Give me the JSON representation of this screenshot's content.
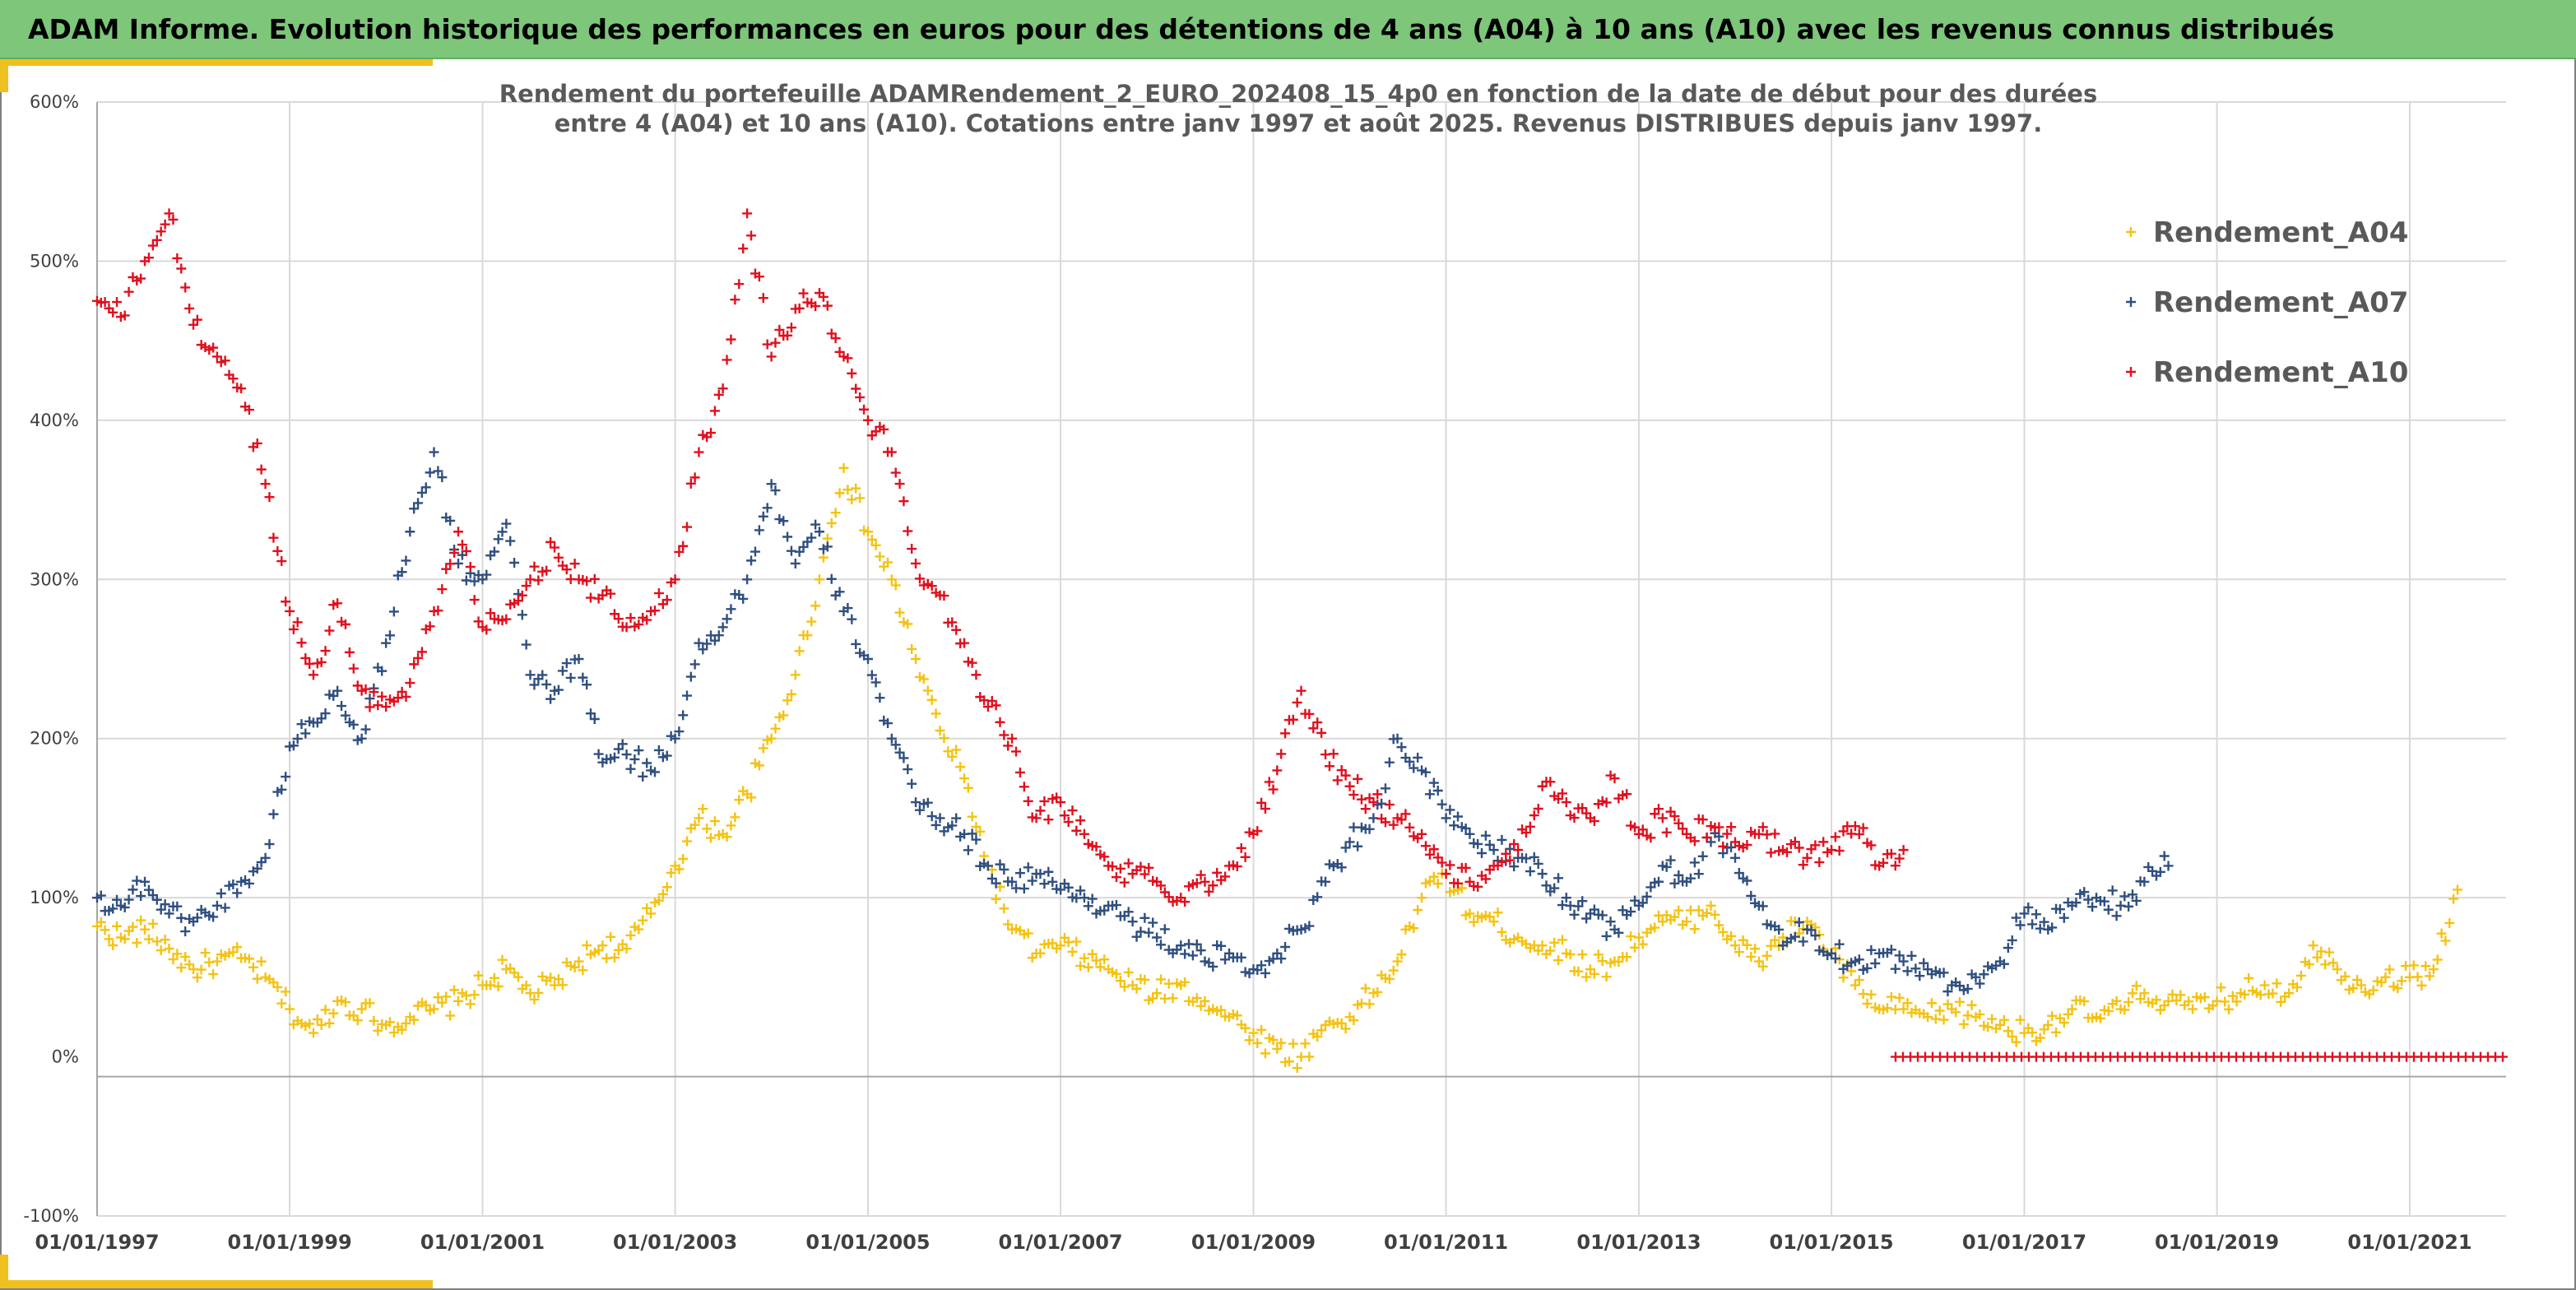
{
  "header": {
    "title": "ADAM Informe. Evolution historique des performances en euros pour des détentions de 4 ans (A04) à 10 ans (A10) avec les revenus connus distribués"
  },
  "colors": {
    "banner": "#7dc67a",
    "accent": "#f0c020",
    "A04": "#f5c211",
    "A07": "#2f4f7f",
    "A10": "#e0101e"
  },
  "chart_data": {
    "type": "scatter",
    "title_lines": [
      "Rendement du portefeuille ADAMRendement_2_EURO_202408_15_4p0  en fonction de la date de début pour des durées",
      "entre 4 (A04) et 10 ans (A10). Cotations entre janv 1997 et août 2025. Revenus DISTRIBUES depuis janv 1997."
    ],
    "xlabel": "",
    "ylabel": "",
    "xlim": [
      "1997-01-01",
      "2022-01-01"
    ],
    "ylim": [
      -100,
      600
    ],
    "y_ticks": [
      -100,
      0,
      100,
      200,
      300,
      400,
      500,
      600
    ],
    "y_tick_labels": [
      "-100%",
      "0%",
      "100%",
      "200%",
      "300%",
      "400%",
      "500%",
      "600%"
    ],
    "x_ticks": [
      "1997-01-01",
      "1999-01-01",
      "2001-01-01",
      "2003-01-01",
      "2005-01-01",
      "2007-01-01",
      "2009-01-01",
      "2011-01-01",
      "2013-01-01",
      "2015-01-01",
      "2017-01-01",
      "2019-01-01",
      "2021-01-01"
    ],
    "x_tick_labels": [
      "01/01/1997",
      "01/01/1999",
      "01/01/2001",
      "01/01/2003",
      "01/01/2005",
      "01/01/2007",
      "01/01/2009",
      "01/01/2011",
      "01/01/2013",
      "01/01/2015",
      "01/01/2017",
      "01/01/2019",
      "01/01/2021"
    ],
    "grid": true,
    "marker": "+",
    "legend_position": "top-right",
    "series": [
      {
        "name": "Rendement_A04",
        "color": "#f5c211",
        "x": [
          "1997-01-01",
          "1997-04-01",
          "1997-07-01",
          "1997-10-01",
          "1998-01-01",
          "1998-04-01",
          "1998-07-01",
          "1998-10-01",
          "1999-01-01",
          "1999-04-01",
          "1999-07-01",
          "1999-10-01",
          "2000-01-01",
          "2000-04-01",
          "2000-07-01",
          "2000-10-01",
          "2001-01-01",
          "2001-04-01",
          "2001-07-01",
          "2001-10-01",
          "2002-01-01",
          "2002-04-01",
          "2002-07-01",
          "2002-10-01",
          "2003-01-01",
          "2003-04-01",
          "2003-07-01",
          "2003-10-01",
          "2004-01-01",
          "2004-04-01",
          "2004-07-01",
          "2004-10-01",
          "2005-01-01",
          "2005-04-01",
          "2005-07-01",
          "2005-10-01",
          "2006-01-01",
          "2006-04-01",
          "2006-07-01",
          "2006-10-01",
          "2007-01-01",
          "2007-04-01",
          "2007-07-01",
          "2007-10-01",
          "2008-01-01",
          "2008-04-01",
          "2008-07-01",
          "2008-10-01",
          "2009-01-01",
          "2009-04-01",
          "2009-07-01",
          "2009-10-01",
          "2010-01-01",
          "2010-04-01",
          "2010-07-01",
          "2010-10-01",
          "2011-01-01",
          "2011-04-01",
          "2011-07-01",
          "2011-10-01",
          "2012-01-01",
          "2012-04-01",
          "2012-07-01",
          "2012-10-01",
          "2013-01-01",
          "2013-04-01",
          "2013-07-01",
          "2013-10-01",
          "2014-01-01",
          "2014-04-01",
          "2014-07-01",
          "2014-10-01",
          "2015-01-01",
          "2015-04-01",
          "2015-07-01",
          "2015-10-01",
          "2016-01-01",
          "2016-04-01",
          "2016-07-01",
          "2016-10-01",
          "2017-01-01",
          "2017-04-01",
          "2017-07-01",
          "2017-10-01",
          "2018-01-01",
          "2018-04-01",
          "2018-07-01",
          "2018-10-01",
          "2019-01-01",
          "2019-04-01",
          "2019-07-01",
          "2019-10-01",
          "2020-01-01",
          "2020-04-01",
          "2020-07-01",
          "2020-10-01",
          "2021-01-01",
          "2021-04-01",
          "2021-07-01"
        ],
        "y": [
          82,
          75,
          80,
          68,
          55,
          60,
          62,
          50,
          30,
          15,
          35,
          30,
          20,
          25,
          30,
          35,
          45,
          55,
          40,
          45,
          60,
          70,
          68,
          90,
          120,
          150,
          140,
          165,
          200,
          240,
          300,
          370,
          330,
          300,
          250,
          205,
          175,
          120,
          80,
          65,
          70,
          62,
          55,
          45,
          40,
          45,
          35,
          25,
          15,
          5,
          0,
          20,
          25,
          40,
          60,
          100,
          115,
          90,
          85,
          75,
          70,
          65,
          55,
          60,
          75,
          85,
          85,
          95,
          70,
          60,
          75,
          85,
          65,
          45,
          30,
          30,
          25,
          30,
          25,
          20,
          15,
          20,
          30,
          25,
          30,
          40,
          35,
          30,
          35,
          40,
          45,
          40,
          70,
          55,
          45,
          50,
          50,
          55,
          105
        ]
      },
      {
        "name": "Rendement_A07",
        "color": "#2f4f7f",
        "x": [
          "1997-01-01",
          "1997-04-01",
          "1997-07-01",
          "1997-10-01",
          "1998-01-01",
          "1998-04-01",
          "1998-07-01",
          "1998-10-01",
          "1999-01-01",
          "1999-04-01",
          "1999-07-01",
          "1999-10-01",
          "2000-01-01",
          "2000-04-01",
          "2000-07-01",
          "2000-10-01",
          "2001-01-01",
          "2001-04-01",
          "2001-07-01",
          "2001-10-01",
          "2002-01-01",
          "2002-04-01",
          "2002-07-01",
          "2002-10-01",
          "2003-01-01",
          "2003-04-01",
          "2003-07-01",
          "2003-10-01",
          "2004-01-01",
          "2004-04-01",
          "2004-07-01",
          "2004-10-01",
          "2005-01-01",
          "2005-04-01",
          "2005-07-01",
          "2005-10-01",
          "2006-01-01",
          "2006-04-01",
          "2006-07-01",
          "2006-10-01",
          "2007-01-01",
          "2007-04-01",
          "2007-07-01",
          "2007-10-01",
          "2008-01-01",
          "2008-04-01",
          "2008-07-01",
          "2008-10-01",
          "2009-01-01",
          "2009-04-01",
          "2009-07-01",
          "2009-10-01",
          "2010-01-01",
          "2010-04-01",
          "2010-07-01",
          "2010-10-01",
          "2011-01-01",
          "2011-04-01",
          "2011-07-01",
          "2011-10-01",
          "2012-01-01",
          "2012-04-01",
          "2012-07-01",
          "2012-10-01",
          "2013-01-01",
          "2013-04-01",
          "2013-07-01",
          "2013-10-01",
          "2014-01-01",
          "2014-04-01",
          "2014-07-01",
          "2014-10-01",
          "2015-01-01",
          "2015-04-01",
          "2015-07-01",
          "2015-10-01",
          "2016-01-01",
          "2016-04-01",
          "2016-07-01",
          "2016-10-01",
          "2017-01-01",
          "2017-04-01",
          "2017-07-01",
          "2017-10-01",
          "2018-01-01",
          "2018-04-01",
          "2018-07-01"
        ],
        "y": [
          100,
          95,
          110,
          90,
          85,
          95,
          110,
          125,
          195,
          210,
          230,
          200,
          260,
          330,
          380,
          310,
          300,
          335,
          240,
          230,
          250,
          185,
          190,
          180,
          200,
          260,
          270,
          300,
          360,
          310,
          330,
          280,
          250,
          200,
          160,
          150,
          140,
          120,
          110,
          115,
          105,
          100,
          95,
          85,
          75,
          70,
          60,
          65,
          55,
          65,
          80,
          110,
          135,
          150,
          200,
          180,
          150,
          140,
          130,
          125,
          115,
          100,
          90,
          80,
          95,
          120,
          110,
          135,
          125,
          95,
          70,
          80,
          65,
          60,
          65,
          60,
          55,
          45,
          50,
          60,
          90,
          80,
          95,
          100,
          95,
          110,
          120
        ]
      },
      {
        "name": "Rendement_A10",
        "color": "#e0101e",
        "x": [
          "1997-01-01",
          "1997-04-01",
          "1997-07-01",
          "1997-10-01",
          "1998-01-01",
          "1998-04-01",
          "1998-07-01",
          "1998-10-01",
          "1999-01-01",
          "1999-04-01",
          "1999-07-01",
          "1999-10-01",
          "2000-01-01",
          "2000-04-01",
          "2000-07-01",
          "2000-10-01",
          "2001-01-01",
          "2001-04-01",
          "2001-07-01",
          "2001-10-01",
          "2002-01-01",
          "2002-04-01",
          "2002-07-01",
          "2002-10-01",
          "2003-01-01",
          "2003-04-01",
          "2003-07-01",
          "2003-10-01",
          "2004-01-01",
          "2004-04-01",
          "2004-07-01",
          "2004-10-01",
          "2005-01-01",
          "2005-04-01",
          "2005-07-01",
          "2005-10-01",
          "2006-01-01",
          "2006-04-01",
          "2006-07-01",
          "2006-10-01",
          "2007-01-01",
          "2007-04-01",
          "2007-07-01",
          "2007-10-01",
          "2008-01-01",
          "2008-04-01",
          "2008-07-01",
          "2008-10-01",
          "2009-01-01",
          "2009-04-01",
          "2009-07-01",
          "2009-10-01",
          "2010-01-01",
          "2010-04-01",
          "2010-07-01",
          "2010-10-01",
          "2011-01-01",
          "2011-04-01",
          "2011-07-01",
          "2011-10-01",
          "2012-01-01",
          "2012-04-01",
          "2012-07-01",
          "2012-10-01",
          "2013-01-01",
          "2013-04-01",
          "2013-07-01",
          "2013-10-01",
          "2014-01-01",
          "2014-04-01",
          "2014-07-01",
          "2014-10-01",
          "2015-01-01",
          "2015-04-01",
          "2015-07-01",
          "2015-10-01"
        ],
        "y": [
          475,
          465,
          500,
          530,
          460,
          440,
          420,
          360,
          280,
          240,
          285,
          230,
          220,
          235,
          280,
          330,
          270,
          275,
          300,
          320,
          300,
          290,
          270,
          280,
          300,
          380,
          420,
          530,
          440,
          470,
          480,
          440,
          400,
          380,
          310,
          290,
          260,
          220,
          200,
          150,
          160,
          140,
          120,
          115,
          110,
          100,
          110,
          120,
          140,
          180,
          230,
          190,
          170,
          160,
          150,
          140,
          115,
          110,
          120,
          130,
          170,
          160,
          150,
          175,
          140,
          150,
          140,
          145,
          135,
          140,
          130,
          125,
          130,
          145,
          120,
          130
        ]
      },
      {
        "name": "Rendement_A10_zero_band",
        "color": "#e0101e",
        "x_range": [
          "2015-09-01",
          "2022-01-01"
        ],
        "y_constant": 0
      }
    ]
  }
}
